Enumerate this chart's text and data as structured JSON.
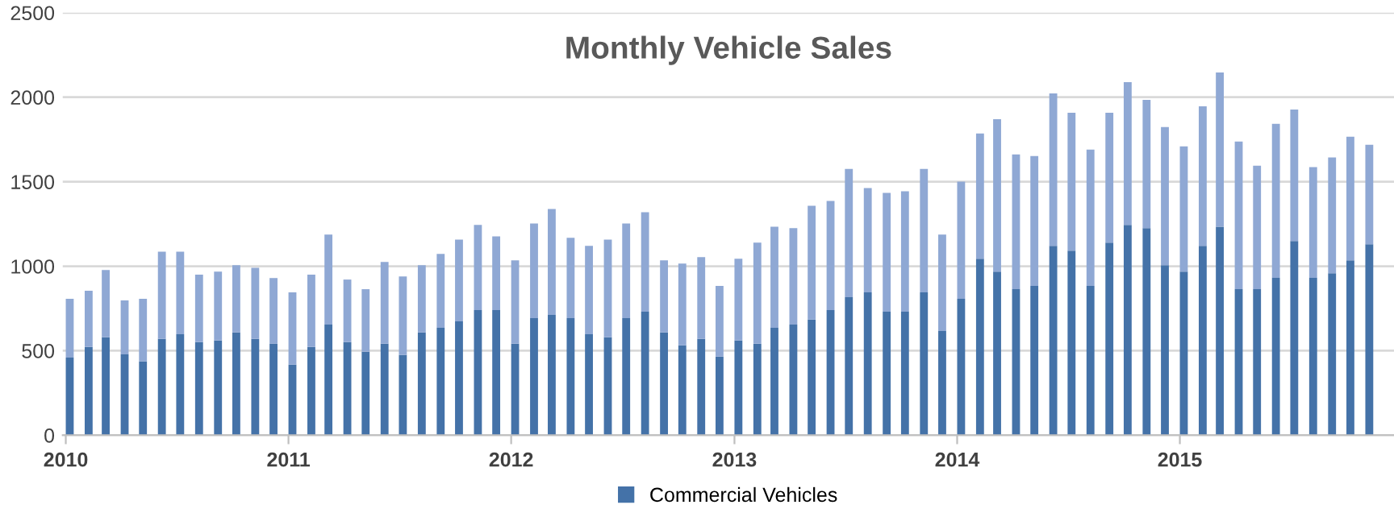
{
  "chart_data": {
    "type": "bar",
    "title": "Monthly Vehicle Sales",
    "stacked": true,
    "x": [
      "2010-01",
      "2010-02",
      "2010-03",
      "2010-04",
      "2010-05",
      "2010-06",
      "2010-07",
      "2010-08",
      "2010-09",
      "2010-10",
      "2010-11",
      "2010-12",
      "2011-01",
      "2011-02",
      "2011-03",
      "2011-04",
      "2011-05",
      "2011-06",
      "2011-07",
      "2011-08",
      "2011-09",
      "2011-10",
      "2011-11",
      "2011-12",
      "2012-01",
      "2012-02",
      "2012-03",
      "2012-04",
      "2012-05",
      "2012-06",
      "2012-07",
      "2012-08",
      "2012-09",
      "2012-10",
      "2012-11",
      "2012-12",
      "2013-01",
      "2013-02",
      "2013-03",
      "2013-04",
      "2013-05",
      "2013-06",
      "2013-07",
      "2013-08",
      "2013-09",
      "2013-10",
      "2013-11",
      "2013-12",
      "2014-01",
      "2014-02",
      "2014-03",
      "2014-04",
      "2014-05",
      "2014-06",
      "2014-07",
      "2014-08",
      "2014-09",
      "2014-10",
      "2014-11",
      "2014-12",
      "2015-01",
      "2015-02",
      "2015-03",
      "2015-04",
      "2015-05",
      "2015-06",
      "2015-07",
      "2015-08",
      "2015-09",
      "2015-10",
      "2015-11"
    ],
    "series": [
      {
        "name": "Commercial Vehicles",
        "color": "#4472a8",
        "values": [
          459,
          522,
          579,
          478,
          437,
          570,
          598,
          551,
          560,
          608,
          570,
          541,
          418,
          522,
          655,
          551,
          494,
          541,
          475,
          608,
          636,
          674,
          741,
          741,
          541,
          693,
          712,
          693,
          598,
          579,
          693,
          731,
          608,
          532,
          570,
          465,
          560,
          541,
          636,
          655,
          684,
          741,
          817,
          845,
          731,
          731,
          845,
          617,
          807,
          1044,
          968,
          864,
          883,
          1120,
          1092,
          883,
          1139,
          1244,
          1225,
          1006,
          968,
          1120,
          1234,
          864,
          864,
          931,
          1149,
          931,
          959,
          1035,
          1130
        ]
      },
      {
        "color": "#8fa8d4",
        "values": [
          348,
          333,
          399,
          320,
          370,
          516,
          488,
          399,
          408,
          398,
          421,
          389,
          427,
          428,
          532,
          370,
          370,
          484,
          465,
          398,
          437,
          484,
          503,
          436,
          494,
          560,
          627,
          475,
          522,
          579,
          560,
          589,
          427,
          484,
          484,
          418,
          484,
          598,
          598,
          570,
          674,
          645,
          759,
          617,
          703,
          712,
          731,
          570,
          693,
          741,
          902,
          798,
          769,
          902,
          816,
          807,
          769,
          845,
          759,
          817,
          741,
          826,
          912,
          874,
          731,
          911,
          778,
          655,
          684,
          731,
          589
        ]
      }
    ],
    "xlim": [
      "2009-12-27",
      "2015-12-18"
    ],
    "xticks": [
      "2010",
      "2011",
      "2012",
      "2013",
      "2014",
      "2015"
    ],
    "ylim": [
      0,
      2500
    ],
    "yticks": [
      0,
      500,
      1000,
      1500,
      2000,
      2500
    ],
    "grid": "y",
    "legend": "bottom"
  }
}
